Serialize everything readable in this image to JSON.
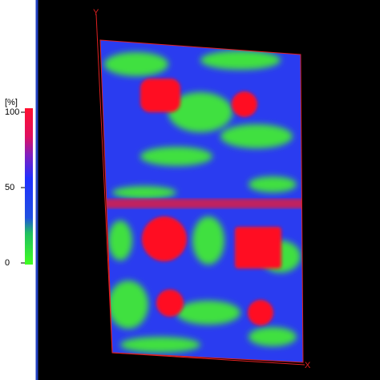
{
  "colorbar": {
    "unit": "[%]",
    "ticks": [
      100,
      50,
      0
    ]
  },
  "axes": {
    "y_label": "Y",
    "x_label": "X"
  }
}
